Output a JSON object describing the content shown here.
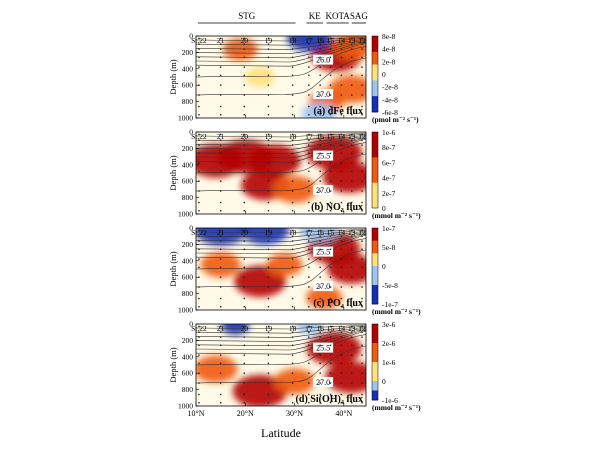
{
  "chart_data": [
    {
      "type": "heatmap",
      "panel_title": "(a) dFe flux",
      "colorbar_unit": "(pmol m⁻² s⁻¹)",
      "colorbar_ticks": [
        "8e-8",
        "4e-8",
        "2e-8",
        "0",
        "-2e-8",
        "-4e-8",
        "-6e-8"
      ],
      "colorbar_range": [
        -6e-08,
        8e-08
      ],
      "isopycnal_labels": [
        "26.0",
        "27.0"
      ],
      "ylabel": "Depth (m)",
      "yticks": [
        0,
        200,
        400,
        600,
        800,
        1000
      ],
      "hotspots": [
        {
          "lat": 19,
          "depth": 160,
          "value": 3e-08
        },
        {
          "lat": 23,
          "depth": 500,
          "value": 2e-08
        },
        {
          "lat": 38.5,
          "depth": 250,
          "value": 6e-08
        },
        {
          "lat": 42,
          "depth": 120,
          "value": 5e-08
        },
        {
          "lat": 41.5,
          "depth": 650,
          "value": 5e-08
        },
        {
          "lat": 36.5,
          "depth": 800,
          "value": 3e-08
        },
        {
          "lat": 33,
          "depth": 20,
          "value": -5e-08
        },
        {
          "lat": 35,
          "depth": 950,
          "value": -3e-08
        }
      ]
    },
    {
      "type": "heatmap",
      "panel_title": "(b) NO₃ flux",
      "colorbar_unit": "(mmol m⁻² s⁻¹)",
      "colorbar_ticks": [
        "1e-6",
        "8e-7",
        "6e-7",
        "4e-7",
        "2e-7",
        "0"
      ],
      "colorbar_range": [
        0,
        1e-06
      ],
      "isopycnal_labels": [
        "25.5",
        "27.0"
      ],
      "ylabel": "Depth (m)",
      "yticks": [
        0,
        200,
        400,
        600,
        800,
        1000
      ],
      "hotspots": [
        {
          "lat": 14,
          "depth": 350,
          "value": 9e-07
        },
        {
          "lat": 20,
          "depth": 300,
          "value": 9e-07
        },
        {
          "lat": 26,
          "depth": 350,
          "value": 8e-07
        },
        {
          "lat": 24,
          "depth": 650,
          "value": 7e-07
        },
        {
          "lat": 38,
          "depth": 250,
          "value": 9e-07
        },
        {
          "lat": 41,
          "depth": 550,
          "value": 8e-07
        },
        {
          "lat": 30,
          "depth": 700,
          "value": 6e-07
        }
      ]
    },
    {
      "type": "heatmap",
      "panel_title": "(c) PO₄ flux",
      "colorbar_unit": "(mmol m⁻² s⁻¹)",
      "colorbar_ticks": [
        "1e-7",
        "5e-8",
        "0",
        "-5e-8",
        "-1e-7"
      ],
      "colorbar_range": [
        -1e-07,
        1e-07
      ],
      "isopycnal_labels": [
        "25.5",
        "27.0"
      ],
      "ylabel": "Depth (m)",
      "yticks": [
        0,
        200,
        400,
        600,
        800,
        1000
      ],
      "hotspots": [
        {
          "lat": 23,
          "depth": 650,
          "value": 8e-08
        },
        {
          "lat": 15,
          "depth": 450,
          "value": 5e-08
        },
        {
          "lat": 28,
          "depth": 450,
          "value": 4e-08
        },
        {
          "lat": 38,
          "depth": 250,
          "value": 8e-08
        },
        {
          "lat": 41.5,
          "depth": 500,
          "value": 7e-08
        },
        {
          "lat": 36,
          "depth": 850,
          "value": 4e-08
        },
        {
          "lat": 15,
          "depth": 20,
          "value": -8e-08
        },
        {
          "lat": 24,
          "depth": 20,
          "value": -7e-08
        },
        {
          "lat": 35,
          "depth": 20,
          "value": -5e-08
        }
      ]
    },
    {
      "type": "heatmap",
      "panel_title": "(d) Si(OH)₄ flux",
      "colorbar_unit": "(mmol m⁻² s⁻¹)",
      "colorbar_ticks": [
        "3e-6",
        "2e-6",
        "1e-6",
        "0",
        "-1e-6"
      ],
      "colorbar_range": [
        -1e-06,
        3e-06
      ],
      "isopycnal_labels": [
        "25.5",
        "27.0"
      ],
      "ylabel": "Depth (m)",
      "yticks": [
        0,
        200,
        400,
        600,
        800,
        1000
      ],
      "hotspots": [
        {
          "lat": 14,
          "depth": 550,
          "value": 1.8e-06
        },
        {
          "lat": 23,
          "depth": 820,
          "value": 2.6e-06
        },
        {
          "lat": 30,
          "depth": 700,
          "value": 1.6e-06
        },
        {
          "lat": 38,
          "depth": 300,
          "value": 2.6e-06
        },
        {
          "lat": 41.5,
          "depth": 650,
          "value": 2.4e-06
        },
        {
          "lat": 18,
          "depth": 20,
          "value": -6e-07
        },
        {
          "lat": 33,
          "depth": 20,
          "value": -5e-07
        }
      ]
    }
  ],
  "axes": {
    "xlabel": "Latitude",
    "xticks": [
      "10°N",
      "20°N",
      "30°N",
      "40°N"
    ],
    "xtick_lats": [
      10,
      20,
      30,
      40
    ],
    "lat_range": [
      10,
      44.5
    ],
    "depth_range": [
      0,
      1000
    ]
  },
  "stations": [
    {
      "label": "St.22",
      "lat": 10.6
    },
    {
      "label": "21",
      "lat": 15.0
    },
    {
      "label": "20",
      "lat": 19.8
    },
    {
      "label": "19",
      "lat": 24.7
    },
    {
      "label": "18",
      "lat": 29.6
    },
    {
      "label": "17",
      "lat": 32.9
    },
    {
      "label": "16",
      "lat": 35.2
    },
    {
      "label": "15",
      "lat": 37.3
    },
    {
      "label": "14",
      "lat": 39.5
    },
    {
      "label": "13",
      "lat": 41.6
    },
    {
      "label": "12",
      "lat": 43.7
    }
  ],
  "regions": [
    {
      "label": "STG",
      "lat_from": 10.4,
      "lat_to": 30.2
    },
    {
      "label": "KE",
      "lat_from": 32.4,
      "lat_to": 35.8
    },
    {
      "label": "KOTA",
      "lat_from": 36.5,
      "lat_to": 41.0
    },
    {
      "label": "SAG",
      "lat_from": 41.6,
      "lat_to": 44.5
    }
  ],
  "colors": {
    "positive_max": "#b30000",
    "positive_mid": "#ef5a10",
    "positive_low": "#fde07a",
    "zero": "#ffffff",
    "negative_low": "#9fc4ee",
    "negative_max": "#1430b8"
  }
}
